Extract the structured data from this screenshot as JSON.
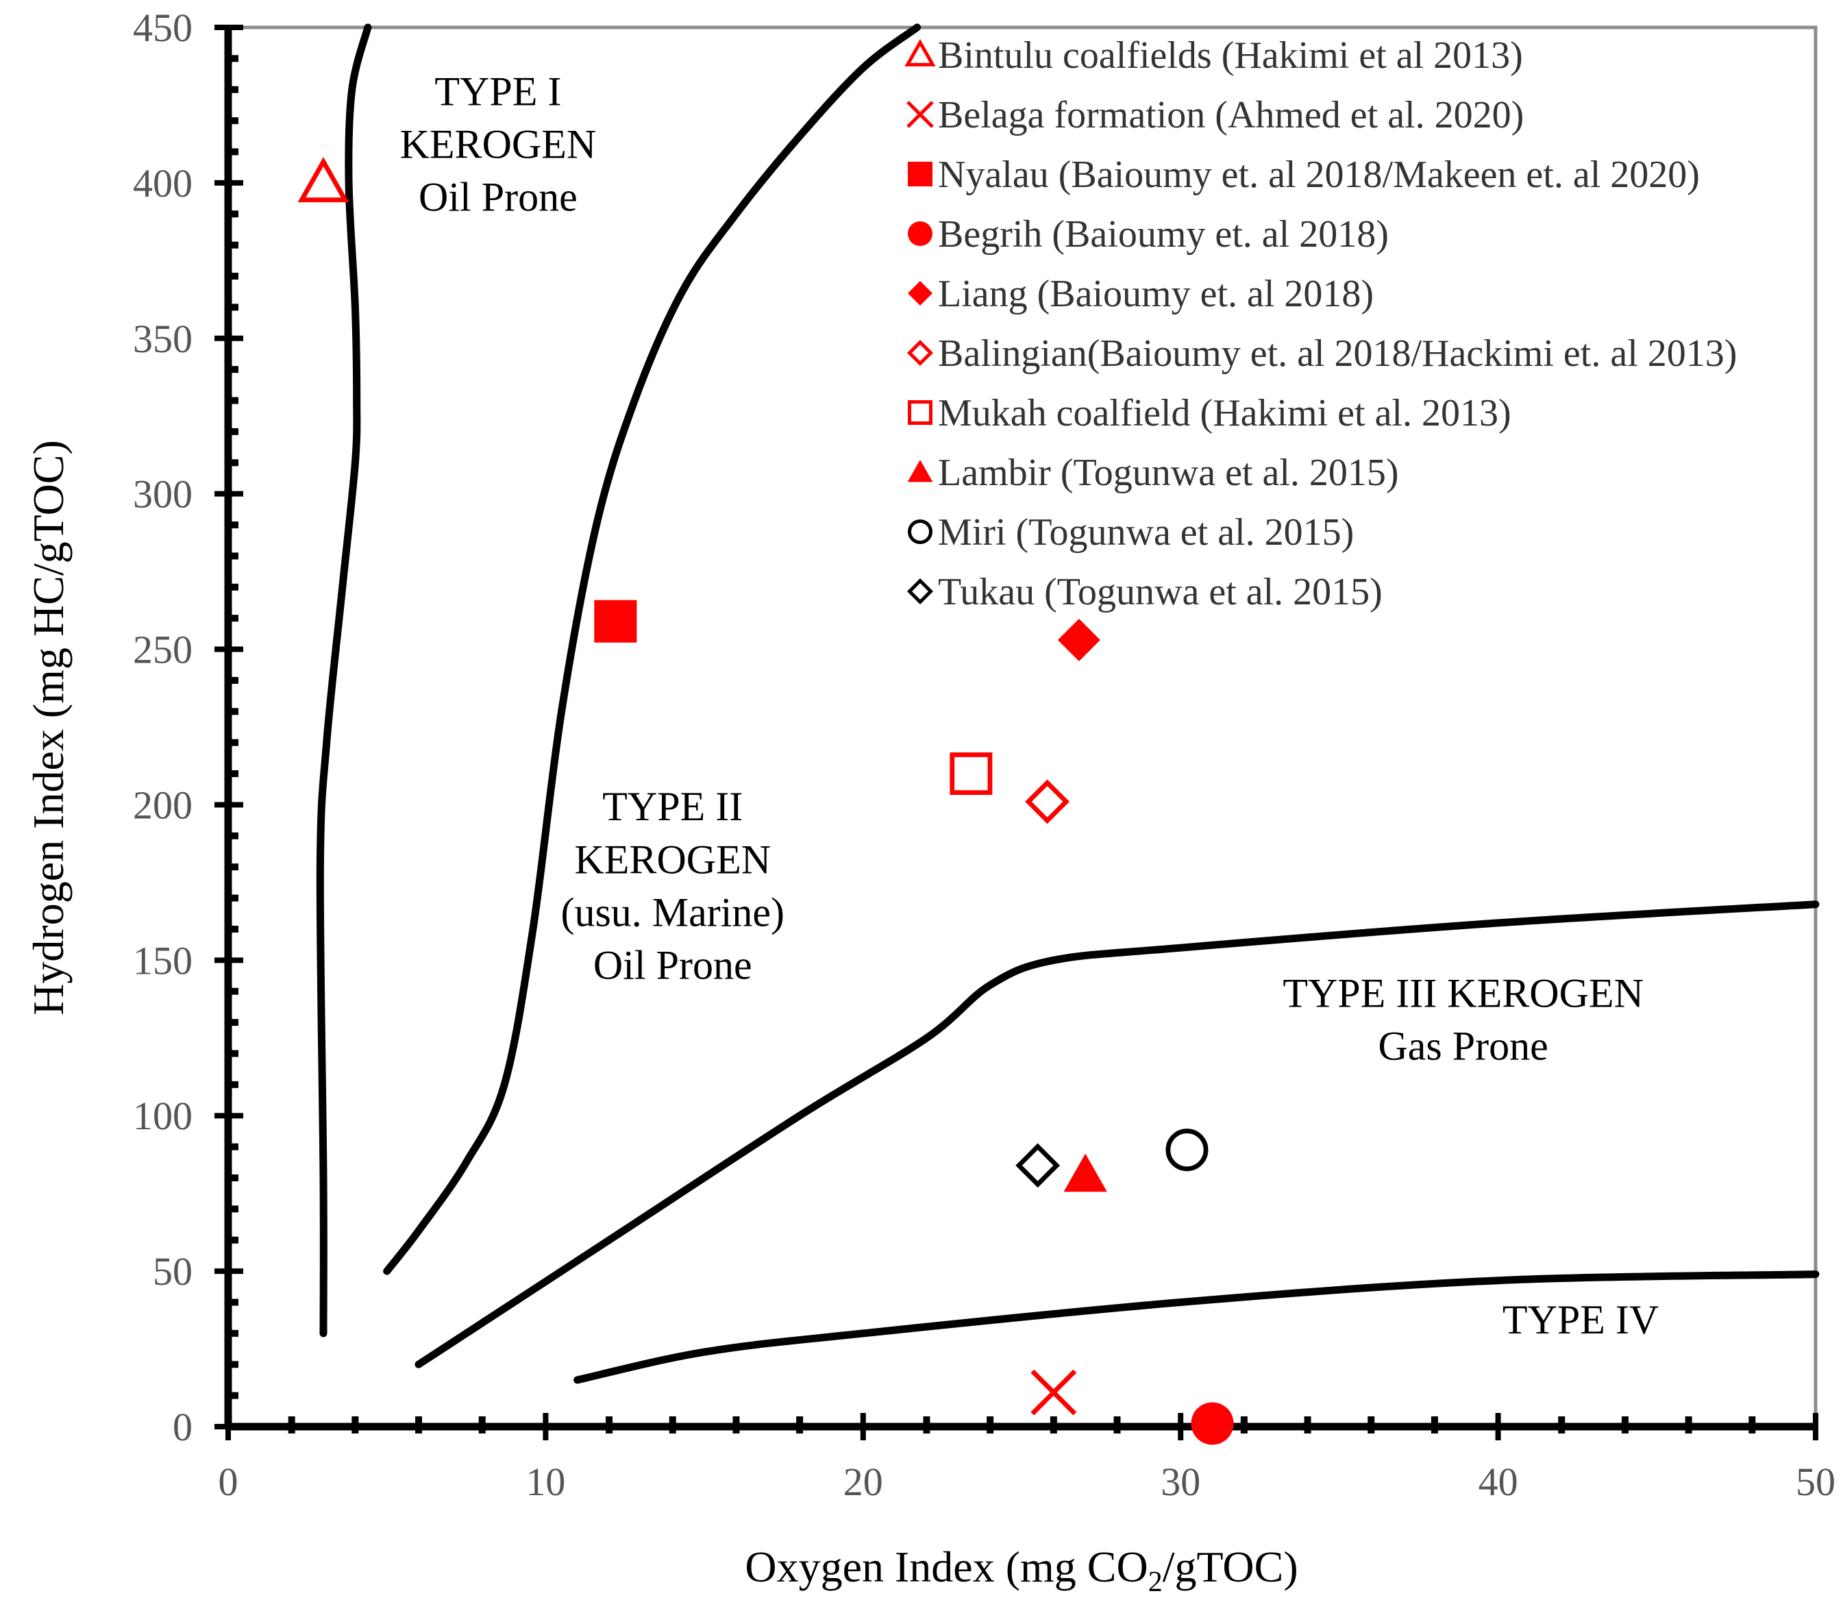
{
  "chart_data": {
    "type": "scatter",
    "xlabel": "Oxygen Index (mg CO",
    "xlabel_sub": "2",
    "xlabel_end": "/gTOC)",
    "ylabel": "Hydrogen Index (mg HC/gTOC)",
    "xlim": [
      0,
      50
    ],
    "ylim": [
      0,
      450
    ],
    "xticks": [
      0,
      10,
      20,
      30,
      40,
      50
    ],
    "yticks": [
      0,
      50,
      100,
      150,
      200,
      250,
      300,
      350,
      400,
      450
    ],
    "grid": false,
    "legend_position": "top-right",
    "series": [
      {
        "name": "Bintulu coalfields (Hakimi et al 2013)",
        "marker": "triangle-open",
        "color": "#ff0000",
        "points": [
          [
            3,
            400
          ]
        ]
      },
      {
        "name": "Belaga formation (Ahmed et al. 2020)",
        "marker": "x",
        "color": "#ff0000",
        "points": [
          [
            26,
            11
          ]
        ]
      },
      {
        "name": "Nyalau (Baioumy et. al 2018/Makeen et. al 2020)",
        "marker": "square-filled",
        "color": "#ff0000",
        "points": [
          [
            12.2,
            259
          ]
        ]
      },
      {
        "name": "Begrih (Baioumy et. al 2018)",
        "marker": "circle-filled",
        "color": "#ff0000",
        "points": [
          [
            31,
            1
          ]
        ]
      },
      {
        "name": "Liang (Baioumy et. al 2018)",
        "marker": "diamond-filled",
        "color": "#ff0000",
        "points": [
          [
            26.8,
            253
          ]
        ]
      },
      {
        "name": "Balingian(Baioumy et. al 2018/Hackimi et. al 2013)",
        "marker": "diamond-open",
        "color": "#ff0000",
        "points": [
          [
            25.8,
            201
          ]
        ]
      },
      {
        "name": "Mukah coalfield (Hakimi et al. 2013)",
        "marker": "square-open",
        "color": "#ff0000",
        "points": [
          [
            23.4,
            210
          ]
        ]
      },
      {
        "name": "Lambir (Togunwa et al. 2015)",
        "marker": "triangle-filled",
        "color": "#ff0000",
        "points": [
          [
            27,
            81
          ]
        ]
      },
      {
        "name": "Miri (Togunwa et al. 2015)",
        "marker": "circle-open",
        "color": "#000000",
        "points": [
          [
            30.2,
            89
          ]
        ]
      },
      {
        "name": "Tukau (Togunwa et al. 2015)",
        "marker": "diamond-open",
        "color": "#000000",
        "points": [
          [
            25.5,
            84
          ]
        ]
      }
    ],
    "boundary_curves": [
      {
        "name": "type-i-ii-boundary",
        "points": [
          [
            3,
            30
          ],
          [
            3,
            80
          ],
          [
            2.9,
            180
          ],
          [
            3.1,
            220
          ],
          [
            3.6,
            270
          ],
          [
            4,
            310
          ],
          [
            4.05,
            330
          ],
          [
            4,
            360
          ],
          [
            3.8,
            400
          ],
          [
            3.9,
            430
          ],
          [
            4.4,
            450
          ]
        ]
      },
      {
        "name": "type-ii-iii-boundary",
        "points": [
          [
            5,
            50
          ],
          [
            6,
            63
          ],
          [
            7.5,
            85
          ],
          [
            8.7,
            110
          ],
          [
            9.6,
            160
          ],
          [
            10.5,
            230
          ],
          [
            11.6,
            290
          ],
          [
            12.8,
            330
          ],
          [
            14.3,
            365
          ],
          [
            16,
            390
          ],
          [
            18,
            415
          ],
          [
            20,
            437
          ],
          [
            21.7,
            450
          ]
        ]
      },
      {
        "name": "type-iii-upper-boundary",
        "points": [
          [
            6,
            20
          ],
          [
            12,
            60
          ],
          [
            18,
            100
          ],
          [
            22,
            125
          ],
          [
            24,
            142
          ],
          [
            26,
            150
          ],
          [
            30,
            154
          ],
          [
            40,
            162
          ],
          [
            50,
            168
          ]
        ]
      },
      {
        "name": "type-iii-iv-boundary",
        "points": [
          [
            11,
            15
          ],
          [
            15,
            24
          ],
          [
            20,
            30
          ],
          [
            30,
            40
          ],
          [
            40,
            47
          ],
          [
            50,
            49
          ]
        ]
      }
    ],
    "annotations": [
      {
        "lines": [
          "TYPE I",
          "KEROGEN",
          "Oil Prone"
        ],
        "x": 8.5,
        "ys": [
          425,
          408,
          391
        ]
      },
      {
        "lines": [
          "TYPE II",
          "KEROGEN",
          "(usu. Marine)",
          "Oil Prone"
        ],
        "x": 14,
        "ys": [
          195,
          178,
          161,
          144
        ]
      },
      {
        "lines": [
          "TYPE III KEROGEN",
          "Gas Prone"
        ],
        "x": 38.9,
        "ys": [
          135,
          118
        ]
      },
      {
        "lines": [
          "TYPE IV"
        ],
        "x": 42.6,
        "ys": [
          30
        ]
      }
    ]
  }
}
